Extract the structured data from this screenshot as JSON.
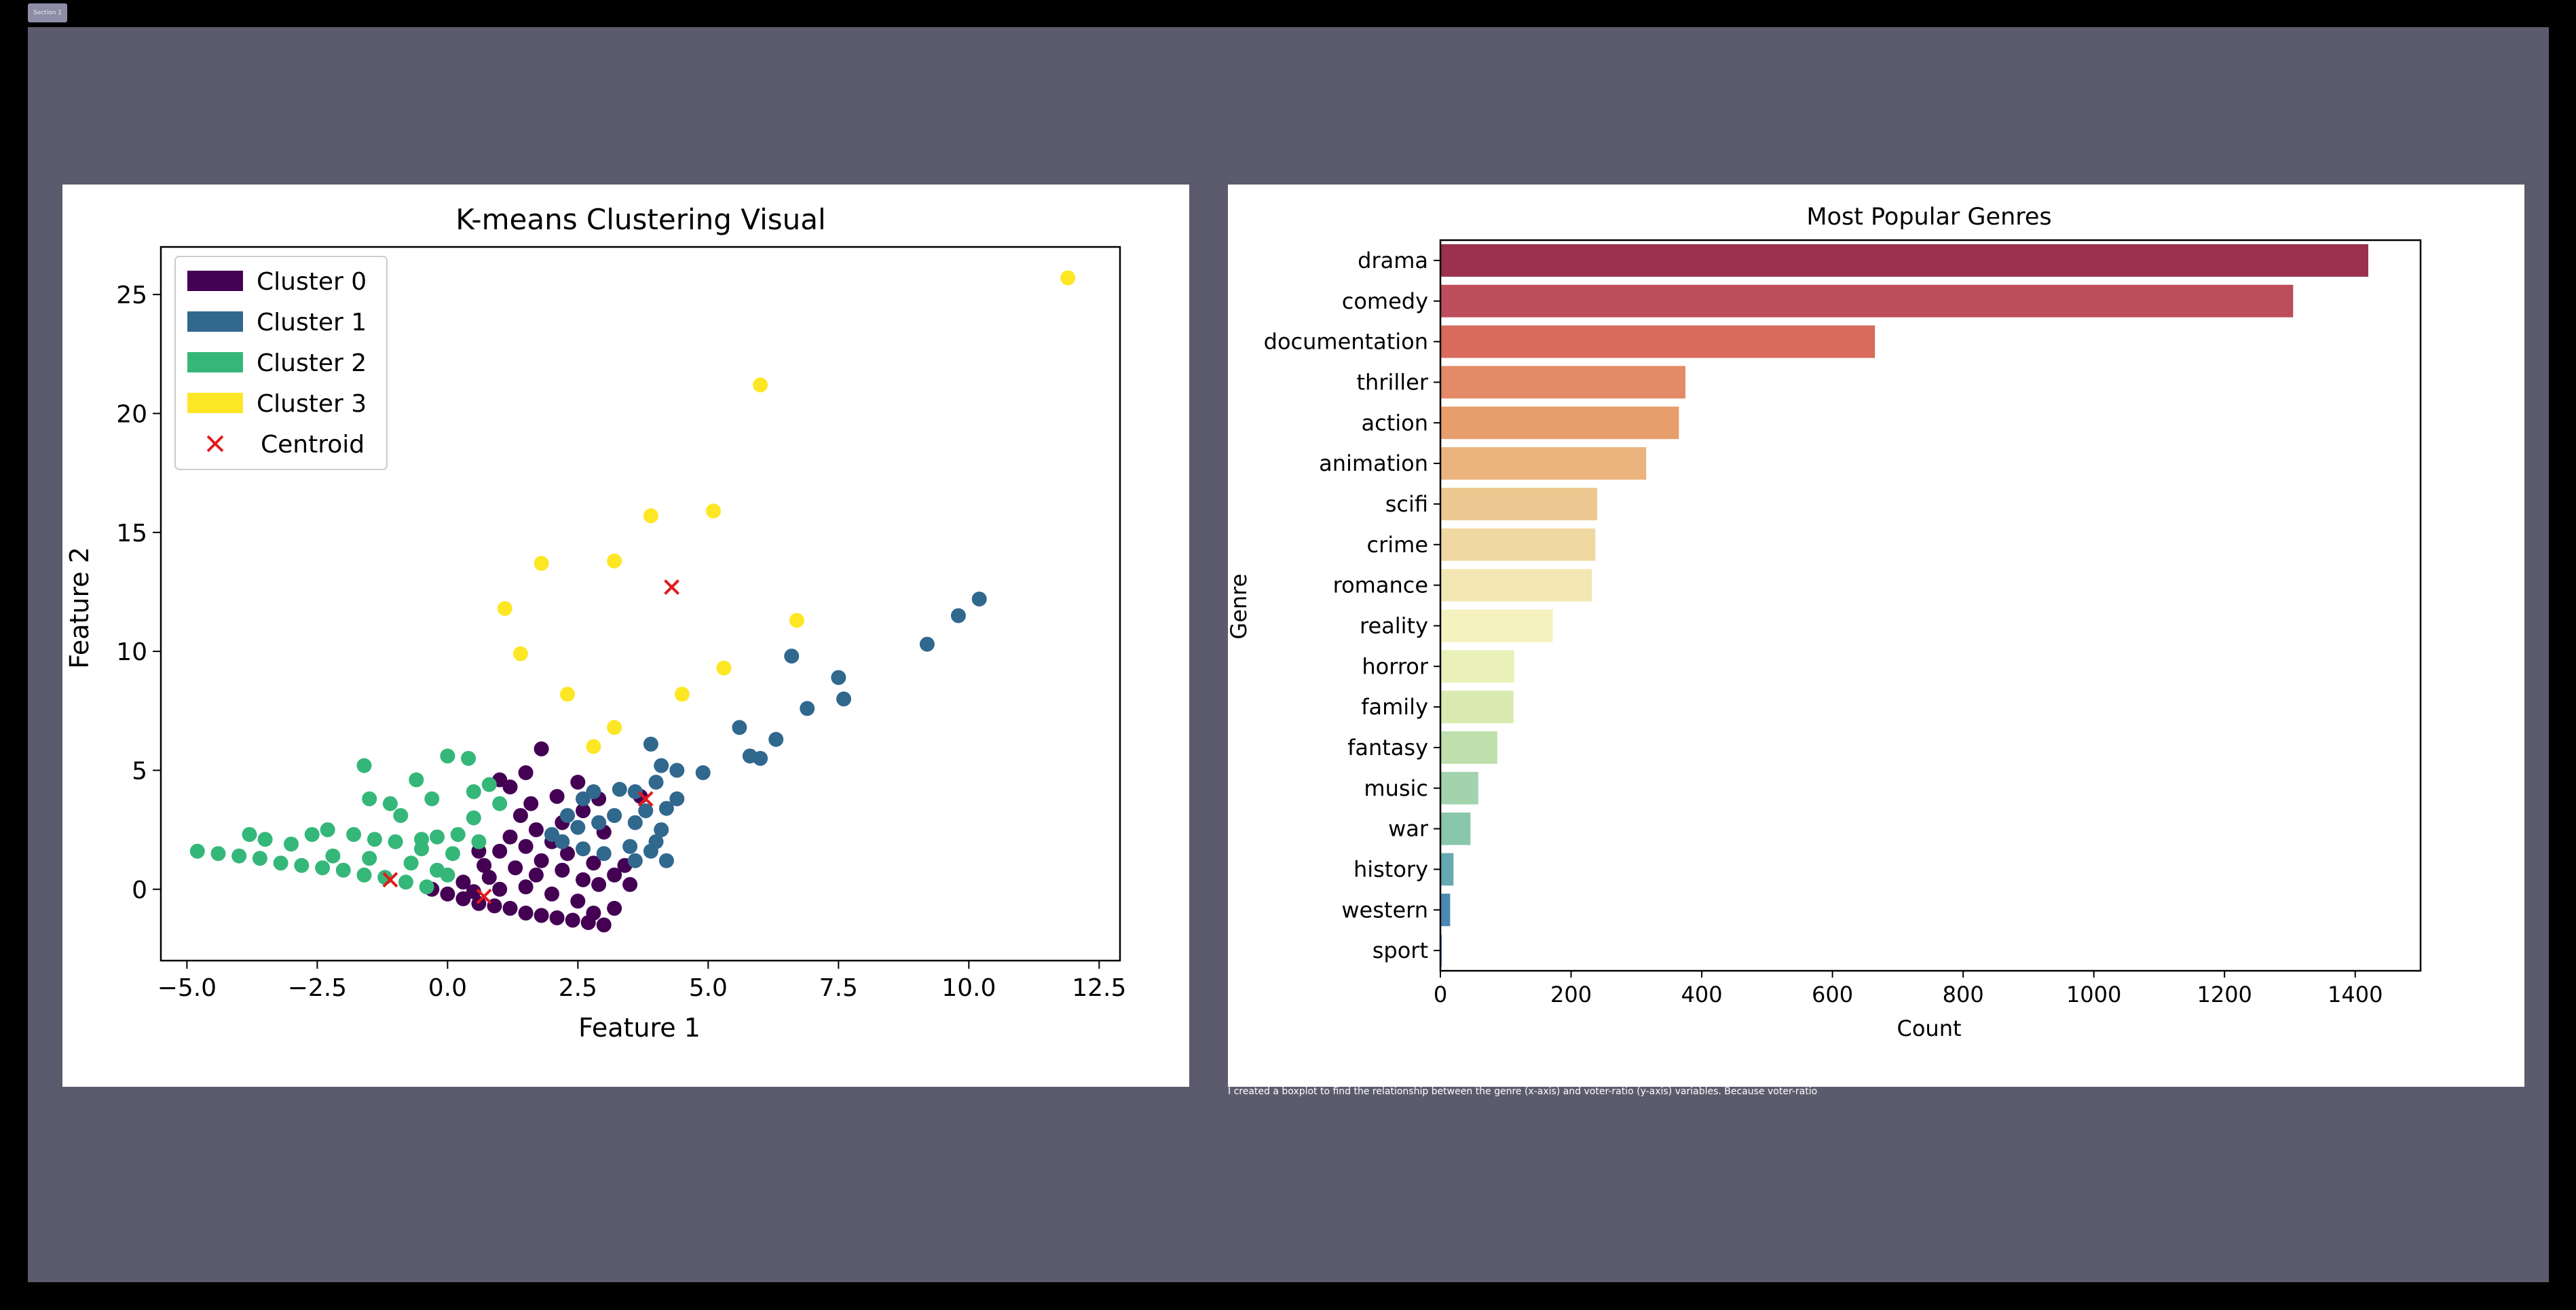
{
  "section_tab": {
    "label": "Section 1"
  },
  "caption": {
    "text": "I created a boxplot to find the relationship between the genre (x-axis) and voter-ratio (y-axis) variables. Because voter-ratio"
  },
  "chart_data": [
    {
      "type": "scatter",
      "title": "K-means Clustering Visual",
      "xlabel": "Feature 1",
      "ylabel": "Feature 2",
      "xlim": [
        -5.5,
        12.9
      ],
      "ylim": [
        -3,
        27
      ],
      "xticks": [
        "−5.0",
        "−2.5",
        "0.0",
        "2.5",
        "5.0",
        "7.5",
        "10.0",
        "12.5"
      ],
      "xtick_values": [
        -5,
        -2.5,
        0,
        2.5,
        5,
        7.5,
        10,
        12.5
      ],
      "yticks": [
        "0",
        "5",
        "10",
        "15",
        "20",
        "25"
      ],
      "ytick_values": [
        0,
        5,
        10,
        15,
        20,
        25
      ],
      "grid": false,
      "legend_position": "upper-left",
      "series": [
        {
          "name": "Cluster 0",
          "color": "#440154",
          "points": [
            [
              3.0,
              -1.5
            ],
            [
              2.7,
              -1.4
            ],
            [
              2.4,
              -1.3
            ],
            [
              2.1,
              -1.2
            ],
            [
              1.8,
              -1.1
            ],
            [
              1.5,
              -1.0
            ],
            [
              1.2,
              -0.8
            ],
            [
              0.9,
              -0.7
            ],
            [
              0.6,
              -0.6
            ],
            [
              0.3,
              -0.4
            ],
            [
              0.0,
              -0.2
            ],
            [
              -0.3,
              0.0
            ],
            [
              0.3,
              0.3
            ],
            [
              0.8,
              0.5
            ],
            [
              1.3,
              0.9
            ],
            [
              1.8,
              1.2
            ],
            [
              2.3,
              1.5
            ],
            [
              2.8,
              1.1
            ],
            [
              3.2,
              0.6
            ],
            [
              3.5,
              0.2
            ],
            [
              3.4,
              1.0
            ],
            [
              2.9,
              0.2
            ],
            [
              2.5,
              -0.5
            ],
            [
              2.0,
              -0.2
            ],
            [
              1.5,
              0.1
            ],
            [
              1.0,
              0.0
            ],
            [
              0.5,
              -0.1
            ],
            [
              1.2,
              2.2
            ],
            [
              1.7,
              2.5
            ],
            [
              2.2,
              2.8
            ],
            [
              1.4,
              3.1
            ],
            [
              1.6,
              3.6
            ],
            [
              1.2,
              4.3
            ],
            [
              1.5,
              4.9
            ],
            [
              1.0,
              4.6
            ],
            [
              2.5,
              4.5
            ],
            [
              2.1,
              3.9
            ],
            [
              2.6,
              3.3
            ],
            [
              1.8,
              5.9
            ],
            [
              1.7,
              0.6
            ],
            [
              2.2,
              0.8
            ],
            [
              2.6,
              0.4
            ],
            [
              0.7,
              1.0
            ],
            [
              0.6,
              1.6
            ],
            [
              1.0,
              1.6
            ],
            [
              1.5,
              1.8
            ],
            [
              2.0,
              2.0
            ],
            [
              3.0,
              2.4
            ],
            [
              2.9,
              3.8
            ],
            [
              3.7,
              3.9
            ],
            [
              3.2,
              -0.8
            ],
            [
              2.8,
              -1.0
            ]
          ]
        },
        {
          "name": "Cluster 1",
          "color": "#31688e",
          "points": [
            [
              10.2,
              12.2
            ],
            [
              9.8,
              11.5
            ],
            [
              9.2,
              10.3
            ],
            [
              7.5,
              8.9
            ],
            [
              7.6,
              8.0
            ],
            [
              6.6,
              9.8
            ],
            [
              6.9,
              7.6
            ],
            [
              6.3,
              6.3
            ],
            [
              5.6,
              6.8
            ],
            [
              5.8,
              5.6
            ],
            [
              6.0,
              5.5
            ],
            [
              4.9,
              4.9
            ],
            [
              4.4,
              5.0
            ],
            [
              4.4,
              3.8
            ],
            [
              4.1,
              5.2
            ],
            [
              3.9,
              6.1
            ],
            [
              4.0,
              4.5
            ],
            [
              4.2,
              3.4
            ],
            [
              4.1,
              2.5
            ],
            [
              3.8,
              3.3
            ],
            [
              3.6,
              2.8
            ],
            [
              3.3,
              4.2
            ],
            [
              3.6,
              4.1
            ],
            [
              3.2,
              3.1
            ],
            [
              2.9,
              2.8
            ],
            [
              2.6,
              3.8
            ],
            [
              2.5,
              2.6
            ],
            [
              2.2,
              2.0
            ],
            [
              3.0,
              1.5
            ],
            [
              3.5,
              1.8
            ],
            [
              3.9,
              1.6
            ],
            [
              4.2,
              1.2
            ],
            [
              4.0,
              2.0
            ],
            [
              3.6,
              1.2
            ],
            [
              2.6,
              1.7
            ],
            [
              2.3,
              3.1
            ],
            [
              2.0,
              2.3
            ],
            [
              2.8,
              4.1
            ]
          ]
        },
        {
          "name": "Cluster 2",
          "color": "#35b779",
          "points": [
            [
              -4.8,
              1.6
            ],
            [
              -4.4,
              1.5
            ],
            [
              -4.0,
              1.4
            ],
            [
              -3.6,
              1.3
            ],
            [
              -3.2,
              1.1
            ],
            [
              -2.8,
              1.0
            ],
            [
              -2.4,
              0.9
            ],
            [
              -2.0,
              0.8
            ],
            [
              -1.6,
              0.6
            ],
            [
              -1.2,
              0.5
            ],
            [
              -0.8,
              0.3
            ],
            [
              -0.4,
              0.1
            ],
            [
              -3.8,
              2.3
            ],
            [
              -3.5,
              2.1
            ],
            [
              -3.0,
              1.9
            ],
            [
              -2.6,
              2.3
            ],
            [
              -2.3,
              2.5
            ],
            [
              -1.8,
              2.3
            ],
            [
              -1.4,
              2.1
            ],
            [
              -1.0,
              2.0
            ],
            [
              -0.5,
              2.1
            ],
            [
              -0.2,
              2.2
            ],
            [
              -1.5,
              3.8
            ],
            [
              -1.1,
              3.6
            ],
            [
              -0.9,
              3.1
            ],
            [
              -0.3,
              3.8
            ],
            [
              0.0,
              5.6
            ],
            [
              0.4,
              5.5
            ],
            [
              0.5,
              4.1
            ],
            [
              0.8,
              4.4
            ],
            [
              1.0,
              3.6
            ],
            [
              -0.6,
              4.6
            ],
            [
              -1.6,
              5.2
            ],
            [
              -0.2,
              0.8
            ],
            [
              0.1,
              1.5
            ],
            [
              0.2,
              2.3
            ],
            [
              0.5,
              3.0
            ],
            [
              -0.7,
              1.1
            ],
            [
              -1.5,
              1.3
            ],
            [
              -2.2,
              1.4
            ],
            [
              -0.5,
              1.7
            ],
            [
              0.0,
              0.6
            ],
            [
              0.6,
              2.0
            ]
          ]
        },
        {
          "name": "Cluster 3",
          "color": "#fde725",
          "points": [
            [
              11.9,
              25.7
            ],
            [
              6.0,
              21.2
            ],
            [
              5.1,
              15.9
            ],
            [
              3.9,
              15.7
            ],
            [
              1.8,
              13.7
            ],
            [
              3.2,
              13.8
            ],
            [
              1.1,
              11.8
            ],
            [
              6.7,
              11.3
            ],
            [
              1.4,
              9.9
            ],
            [
              5.3,
              9.3
            ],
            [
              4.5,
              8.2
            ],
            [
              2.3,
              8.2
            ],
            [
              3.2,
              6.8
            ],
            [
              2.8,
              6.0
            ]
          ]
        }
      ],
      "centroids": {
        "name": "Centroid",
        "color": "#e41a1c",
        "points": [
          [
            4.3,
            12.7
          ],
          [
            3.8,
            3.8
          ],
          [
            -1.1,
            0.4
          ],
          [
            0.7,
            -0.3
          ]
        ]
      }
    },
    {
      "type": "bar",
      "orientation": "horizontal",
      "title": "Most Popular Genres",
      "xlabel": "Count",
      "ylabel": "Genre",
      "xlim": [
        0,
        1500
      ],
      "xticks": [
        "0",
        "200",
        "400",
        "600",
        "800",
        "1000",
        "1200",
        "1400"
      ],
      "xtick_values": [
        0,
        200,
        400,
        600,
        800,
        1000,
        1200,
        1400
      ],
      "categories": [
        "drama",
        "comedy",
        "documentation",
        "thriller",
        "action",
        "animation",
        "scifi",
        "crime",
        "romance",
        "reality",
        "horror",
        "family",
        "fantasy",
        "music",
        "war",
        "history",
        "western",
        "sport"
      ],
      "values": [
        1420,
        1305,
        665,
        375,
        365,
        315,
        240,
        237,
        232,
        172,
        113,
        112,
        87,
        58,
        46,
        20,
        15,
        2
      ],
      "colors": [
        "#9b304f",
        "#bd4d5a",
        "#d86b5b",
        "#e48a66",
        "#e89d6c",
        "#ebb37e",
        "#eec891",
        "#f0d8a2",
        "#f3e8b3",
        "#f5f2be",
        "#e9f1b8",
        "#d9ebb0",
        "#bfe0ad",
        "#a3d3ad",
        "#8ac6aa",
        "#67a9b1",
        "#4b89b3",
        "#4a77b0"
      ]
    }
  ]
}
